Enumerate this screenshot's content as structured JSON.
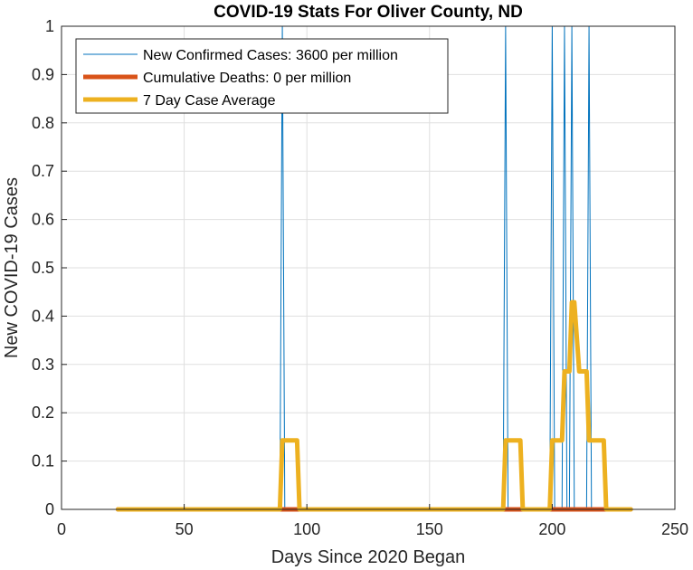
{
  "chart_data": {
    "type": "line",
    "title": "COVID-19 Stats For Oliver County, ND",
    "xlabel": "Days Since 2020 Began",
    "ylabel": "New COVID-19 Cases",
    "xlim": [
      0,
      250
    ],
    "ylim": [
      0,
      1
    ],
    "xticks": [
      0,
      50,
      100,
      150,
      200,
      250
    ],
    "yticks": [
      0,
      0.1,
      0.2,
      0.3,
      0.4,
      0.5,
      0.6,
      0.7,
      0.8,
      0.9,
      1
    ],
    "grid": true,
    "legend_position": "top-left",
    "series": [
      {
        "name": "New Confirmed Cases: 3600 per million",
        "color": "#0072BD",
        "x": [
          23,
          89,
          90,
          91,
          180,
          181,
          182,
          199,
          200,
          201,
          204,
          205,
          206,
          207,
          208,
          209,
          210,
          214,
          215,
          216,
          232
        ],
        "y": [
          0,
          0,
          1,
          0,
          0,
          1,
          0,
          0,
          1,
          0,
          0,
          1,
          0,
          0,
          1,
          0,
          0,
          0,
          1,
          0,
          0
        ]
      },
      {
        "name": "Cumulative Deaths: 0 per million",
        "color": "#D95319",
        "x": [
          23,
          232
        ],
        "y": [
          0,
          0
        ]
      },
      {
        "name": "7 Day Case Average",
        "color": "#EDB120",
        "x": [
          23,
          89,
          90,
          96,
          97,
          180,
          181,
          187,
          188,
          199,
          200,
          204,
          205,
          207,
          208,
          209,
          211,
          212,
          214,
          215,
          221,
          222,
          232
        ],
        "y": [
          0,
          0,
          0.1429,
          0.1429,
          0,
          0,
          0.1429,
          0.1429,
          0,
          0,
          0.1429,
          0.1429,
          0.2857,
          0.2857,
          0.4286,
          0.4286,
          0.2857,
          0.2857,
          0.2857,
          0.1429,
          0.1429,
          0,
          0
        ]
      }
    ]
  }
}
